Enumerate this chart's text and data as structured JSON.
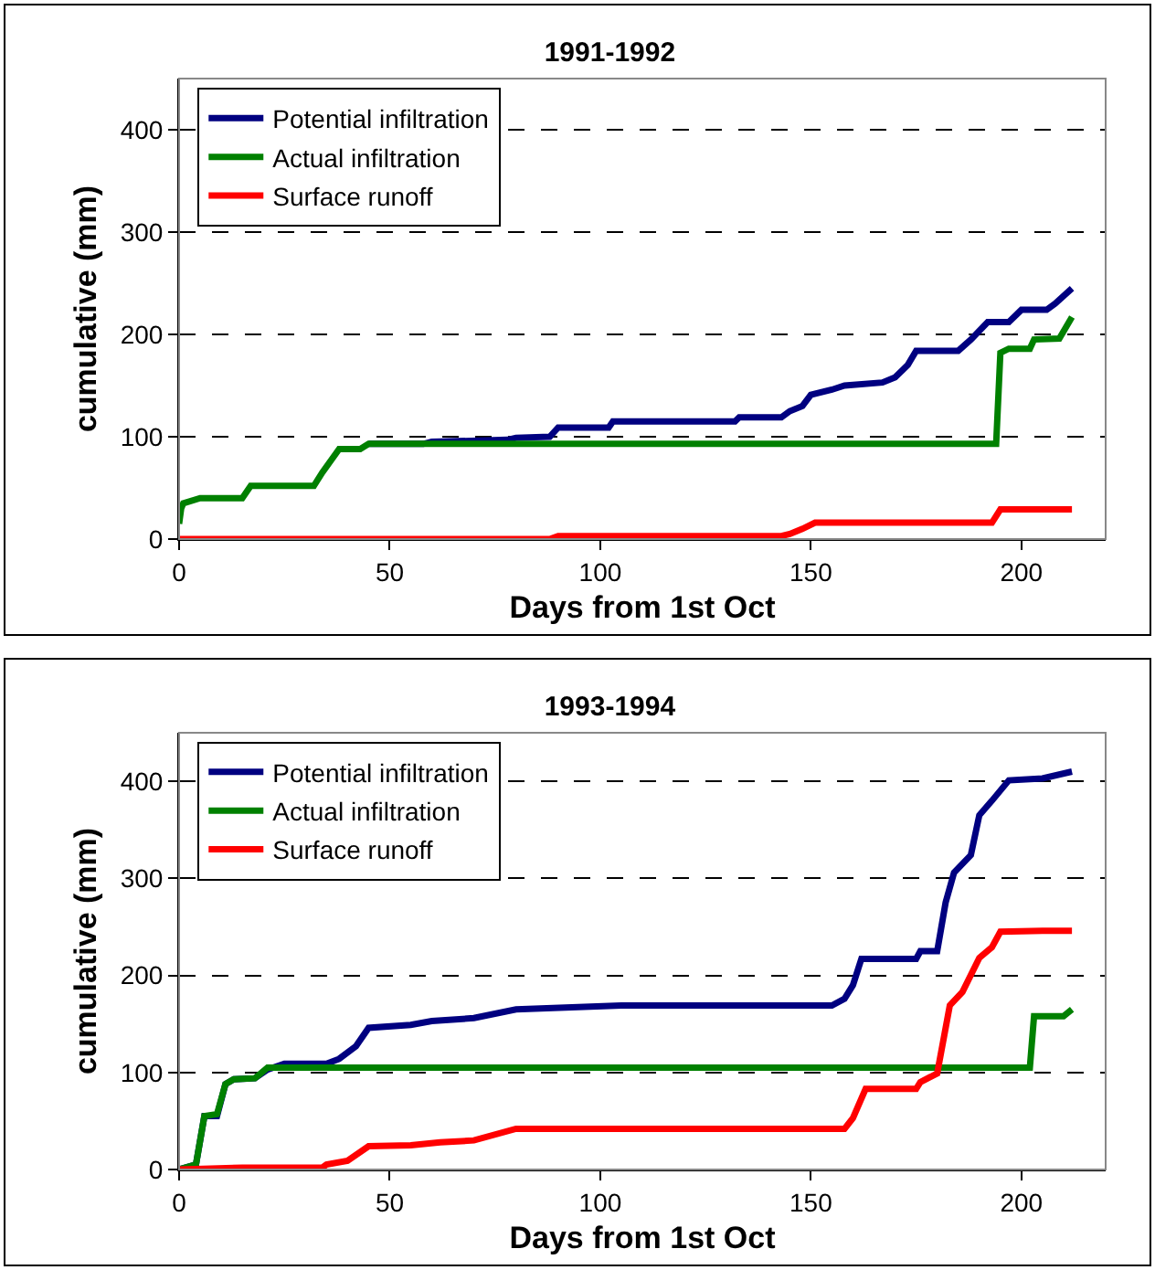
{
  "chart_data": [
    {
      "type": "line",
      "title": "1991-1992",
      "xlabel": "Days from 1st Oct",
      "ylabel": "cumulative (mm)",
      "xlim": [
        0,
        220
      ],
      "xticks": [
        0,
        50,
        100,
        150,
        200
      ],
      "ylim": [
        0,
        450
      ],
      "yticks": [
        0,
        100,
        200,
        300,
        400
      ],
      "grid": "y",
      "legend": "top left",
      "marker": "none",
      "line_style": "solid",
      "series": [
        {
          "name": "Potential infiltration",
          "color": "#000080",
          "x": [
            45,
            58,
            60,
            78,
            80,
            88,
            90,
            102,
            103,
            132,
            133,
            143,
            145,
            148,
            150,
            155,
            158,
            167,
            170,
            173,
            175,
            185,
            188,
            192,
            197,
            200,
            206,
            208,
            212
          ],
          "values": [
            93,
            93,
            95,
            97,
            99,
            100,
            109,
            109,
            115,
            115,
            119,
            119,
            125,
            130,
            141,
            146,
            150,
            153,
            158,
            170,
            184,
            184,
            195,
            212,
            212,
            224,
            224,
            230,
            245
          ]
        },
        {
          "name": "Actual infiltration",
          "color": "#008000",
          "x": [
            0,
            0.5,
            1,
            5,
            15,
            17,
            32,
            34,
            38,
            43,
            45,
            194,
            195,
            197,
            202,
            203,
            209,
            212
          ],
          "values": [
            15,
            30,
            35,
            40,
            40,
            52,
            52,
            65,
            88,
            88,
            93,
            93,
            182,
            186,
            186,
            195,
            196,
            217
          ]
        },
        {
          "name": "Surface runoff",
          "color": "#ff0000",
          "x": [
            0,
            88,
            90,
            143,
            145,
            148,
            151,
            193,
            195,
            212
          ],
          "values": [
            0,
            0,
            3,
            3,
            5,
            10,
            16,
            16,
            29,
            29
          ]
        }
      ]
    },
    {
      "type": "line",
      "title": "1993-1994",
      "xlabel": "Days from 1st Oct",
      "ylabel": "cumulative (mm)",
      "xlim": [
        0,
        220
      ],
      "xticks": [
        0,
        50,
        100,
        150,
        200
      ],
      "ylim": [
        0,
        450
      ],
      "yticks": [
        0,
        100,
        200,
        300,
        400
      ],
      "grid": "y",
      "legend": "top left",
      "marker": "none",
      "line_style": "solid",
      "series": [
        {
          "name": "Potential infiltration",
          "color": "#000080",
          "x": [
            0,
            4,
            6,
            9,
            11,
            13,
            18,
            21,
            25,
            35,
            38,
            42,
            45,
            55,
            60,
            70,
            80,
            105,
            155,
            158,
            160,
            162,
            175,
            176,
            180,
            182,
            184,
            188,
            190,
            193,
            197,
            205,
            212
          ],
          "values": [
            0,
            5,
            55,
            55,
            88,
            93,
            94,
            103,
            109,
            109,
            114,
            127,
            146,
            149,
            153,
            156,
            165,
            169,
            169,
            176,
            190,
            217,
            217,
            225,
            225,
            275,
            306,
            324,
            365,
            380,
            401,
            403,
            410
          ]
        },
        {
          "name": "Actual infiltration",
          "color": "#008000",
          "x": [
            0,
            4,
            6,
            9,
            11,
            13,
            18,
            21,
            202,
            203,
            210,
            212
          ],
          "values": [
            0,
            5,
            55,
            57,
            88,
            93,
            94,
            105,
            105,
            158,
            158,
            165
          ]
        },
        {
          "name": "Surface runoff",
          "color": "#ff0000",
          "x": [
            0,
            15,
            34,
            35,
            40,
            45,
            55,
            62,
            70,
            80,
            158,
            160,
            163,
            175,
            176,
            180,
            183,
            186,
            190,
            193,
            195,
            205,
            212
          ],
          "values": [
            0,
            2,
            2,
            5,
            9,
            24,
            25,
            28,
            30,
            42,
            42,
            53,
            83,
            83,
            90,
            99,
            169,
            183,
            218,
            229,
            245,
            246,
            246
          ]
        }
      ]
    }
  ]
}
